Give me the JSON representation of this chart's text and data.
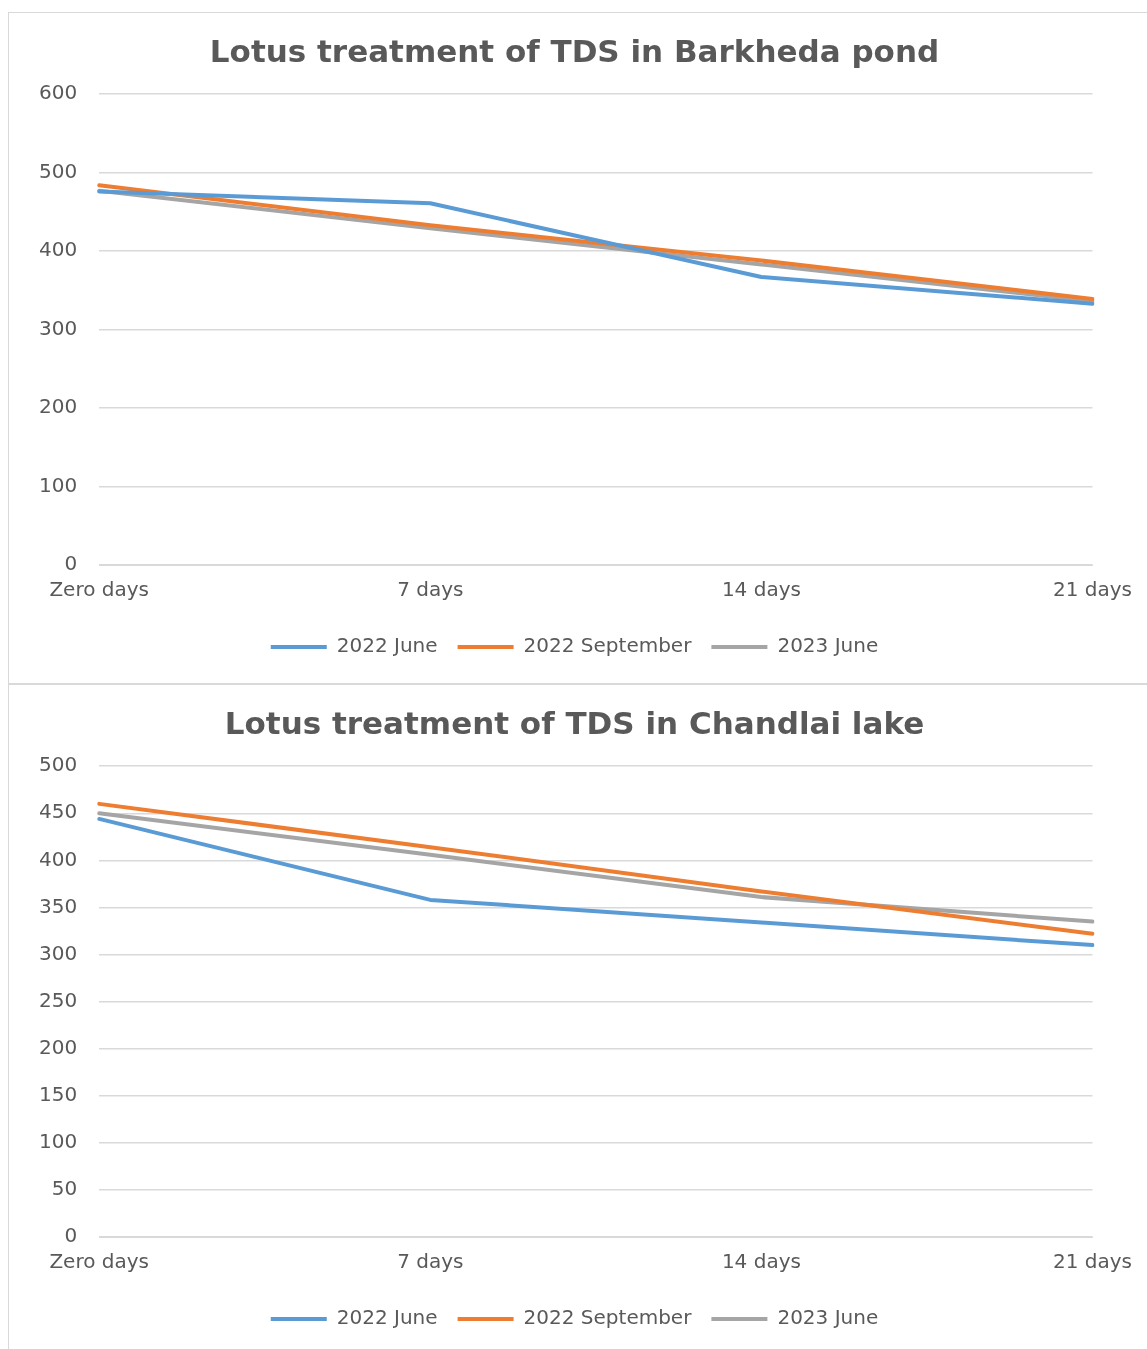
{
  "chart_data": [
    {
      "type": "line",
      "title": "Lotus treatment of TDS in Barkheda pond",
      "categories": [
        "Zero days",
        "7 days",
        "14 days",
        "21 days"
      ],
      "series": [
        {
          "name": "2022 June",
          "color": "#5b9bd5",
          "values": [
            476,
            461,
            367,
            333
          ]
        },
        {
          "name": "2022 September",
          "color": "#ed7d31",
          "values": [
            484,
            433,
            388,
            339
          ]
        },
        {
          "name": "2023 June",
          "color": "#a5a5a5",
          "values": [
            477,
            429,
            383,
            336
          ]
        }
      ],
      "ylim": [
        0,
        600
      ],
      "yticks": [
        0,
        100,
        200,
        300,
        400,
        500,
        600
      ],
      "grid": "y",
      "legend": "bottom",
      "marker": "none"
    },
    {
      "type": "line",
      "title": "Lotus treatment of TDS in Chandlai lake",
      "categories": [
        "Zero days",
        "7 days",
        "14 days",
        "21 days"
      ],
      "series": [
        {
          "name": "2022 June",
          "color": "#5b9bd5",
          "values": [
            444,
            358,
            334,
            310
          ]
        },
        {
          "name": "2022 September",
          "color": "#ed7d31",
          "values": [
            460,
            414,
            367,
            322
          ]
        },
        {
          "name": "2023 June",
          "color": "#a5a5a5",
          "values": [
            450,
            406,
            361,
            335
          ]
        }
      ],
      "ylim": [
        0,
        500
      ],
      "yticks": [
        0,
        50,
        100,
        150,
        200,
        250,
        300,
        350,
        400,
        450,
        500
      ],
      "grid": "y",
      "legend": "bottom",
      "marker": "none"
    }
  ]
}
